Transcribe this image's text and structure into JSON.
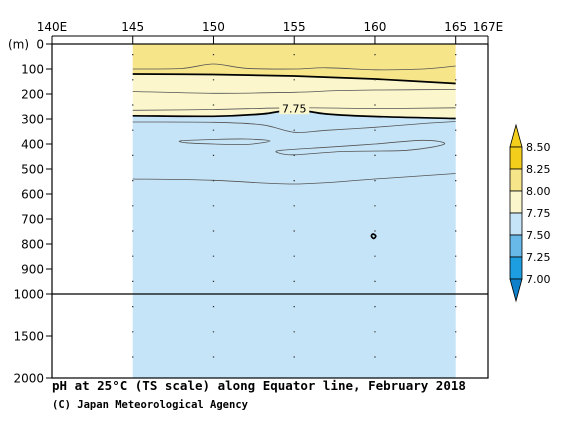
{
  "chart_data": {
    "type": "heatmap",
    "title": "pH at 25°C (TS scale) along Equator line, February 2018",
    "credit": "(C) Japan Meteorological Agency",
    "x_axis": {
      "ticks": [
        {
          "value": 140,
          "label": "140E"
        },
        {
          "value": 145,
          "label": "145"
        },
        {
          "value": 150,
          "label": "150"
        },
        {
          "value": 155,
          "label": "155"
        },
        {
          "value": 160,
          "label": "160"
        },
        {
          "value": 165,
          "label": "165"
        },
        {
          "value": 167,
          "label": "167E"
        }
      ],
      "range": [
        140,
        167
      ],
      "data_extent": [
        145,
        165
      ]
    },
    "y_axis": {
      "unit_label": "(m)",
      "break_depth": 1000,
      "ticks_upper": [
        {
          "value": 0,
          "label": "0"
        },
        {
          "value": 100,
          "label": "100"
        },
        {
          "value": 200,
          "label": "200"
        },
        {
          "value": 300,
          "label": "300"
        },
        {
          "value": 400,
          "label": "400"
        },
        {
          "value": 500,
          "label": "500"
        },
        {
          "value": 600,
          "label": "600"
        },
        {
          "value": 700,
          "label": "700"
        },
        {
          "value": 800,
          "label": "800"
        },
        {
          "value": 900,
          "label": "900"
        },
        {
          "value": 1000,
          "label": "1000"
        }
      ],
      "ticks_lower": [
        {
          "value": 1500,
          "label": "1500"
        },
        {
          "value": 2000,
          "label": "2000"
        }
      ],
      "range": [
        0,
        2000
      ]
    },
    "colorbar": {
      "levels": [
        {
          "label": "8.50",
          "value": 8.5
        },
        {
          "label": "8.25",
          "value": 8.25
        },
        {
          "label": "8.00",
          "value": 8.0
        },
        {
          "label": "7.75",
          "value": 7.75
        },
        {
          "label": "7.50",
          "value": 7.5
        },
        {
          "label": "7.25",
          "value": 7.25
        },
        {
          "label": "7.00",
          "value": 7.0
        }
      ],
      "bands": [
        {
          "range": [
            8.5,
            9.0
          ],
          "color": "#f3cf1c"
        },
        {
          "range": [
            8.25,
            8.5
          ],
          "color": "#f3cf1c"
        },
        {
          "range": [
            8.0,
            8.25
          ],
          "color": "#f7e58a"
        },
        {
          "range": [
            7.75,
            8.0
          ],
          "color": "#fbf6cc"
        },
        {
          "range": [
            7.5,
            7.75
          ],
          "color": "#c6e4f7"
        },
        {
          "range": [
            7.25,
            7.5
          ],
          "color": "#68b9e8"
        },
        {
          "range": [
            7.0,
            7.25
          ],
          "color": "#1d9ee0"
        },
        {
          "range": [
            6.5,
            7.0
          ],
          "color": "#0e7fc9"
        }
      ]
    },
    "fill_layers": [
      {
        "value_range": [
          8.0,
          8.25
        ],
        "color": "#f7e58a",
        "top_depth": 0,
        "bottom": [
          [
            145,
            120
          ],
          [
            150,
            122
          ],
          [
            155,
            128
          ],
          [
            160,
            140
          ],
          [
            165,
            158
          ]
        ]
      },
      {
        "value_range": [
          7.75,
          8.0
        ],
        "color": "#fbf6cc",
        "top": [
          [
            145,
            120
          ],
          [
            150,
            122
          ],
          [
            155,
            128
          ],
          [
            160,
            140
          ],
          [
            165,
            158
          ]
        ],
        "bottom": [
          [
            145,
            287
          ],
          [
            150,
            289
          ],
          [
            153,
            280
          ],
          [
            155,
            263
          ],
          [
            157,
            280
          ],
          [
            160,
            290
          ],
          [
            165,
            298
          ]
        ]
      },
      {
        "value_range": [
          7.5,
          7.75
        ],
        "color": "#c6e4f7",
        "top": [
          [
            145,
            287
          ],
          [
            150,
            289
          ],
          [
            153,
            280
          ],
          [
            155,
            263
          ],
          [
            157,
            280
          ],
          [
            160,
            290
          ],
          [
            165,
            298
          ]
        ],
        "bottom_depth": 2000
      }
    ],
    "contours": [
      {
        "value": 8.1,
        "style": "thin",
        "points": [
          [
            145,
            100
          ],
          [
            148,
            98
          ],
          [
            150,
            80
          ],
          [
            152,
            97
          ],
          [
            155,
            100
          ],
          [
            157,
            95
          ],
          [
            160,
            103
          ],
          [
            163,
            100
          ],
          [
            165,
            88
          ]
        ]
      },
      {
        "value": 8.0,
        "style": "thick",
        "points": [
          [
            145,
            120
          ],
          [
            150,
            122
          ],
          [
            155,
            128
          ],
          [
            160,
            140
          ],
          [
            165,
            158
          ]
        ]
      },
      {
        "value": 7.9,
        "style": "thin",
        "points": [
          [
            145,
            190
          ],
          [
            150,
            197
          ],
          [
            155,
            193
          ],
          [
            158,
            186
          ],
          [
            162,
            183
          ],
          [
            165,
            182
          ]
        ]
      },
      {
        "value": 7.8,
        "style": "thin",
        "points": [
          [
            145,
            265
          ],
          [
            150,
            262
          ],
          [
            155,
            255
          ],
          [
            160,
            258
          ],
          [
            165,
            255
          ]
        ]
      },
      {
        "value": 7.75,
        "style": "thick",
        "label": "7.75",
        "label_at": [
          155,
          265
        ],
        "points": [
          [
            145,
            287
          ],
          [
            150,
            289
          ],
          [
            153,
            280
          ],
          [
            155,
            263
          ],
          [
            157,
            280
          ],
          [
            160,
            290
          ],
          [
            165,
            298
          ]
        ]
      },
      {
        "value": 7.7,
        "style": "thin",
        "points": [
          [
            145,
            312
          ],
          [
            150,
            313
          ],
          [
            153,
            323
          ],
          [
            155,
            353
          ],
          [
            157,
            345
          ],
          [
            160,
            333
          ],
          [
            163,
            318
          ],
          [
            165,
            310
          ]
        ]
      },
      {
        "value": 7.6,
        "style": "thin",
        "closed": true,
        "points": [
          [
            148,
            387
          ],
          [
            150,
            382
          ],
          [
            152,
            380
          ],
          [
            153.5,
            388
          ],
          [
            152,
            402
          ],
          [
            150,
            400
          ],
          [
            148.3,
            395
          ]
        ]
      },
      {
        "value": 7.6,
        "style": "thin",
        "closed": true,
        "points": [
          [
            154.2,
            425
          ],
          [
            157,
            413
          ],
          [
            160,
            400
          ],
          [
            163,
            385
          ],
          [
            164.3,
            400
          ],
          [
            162,
            425
          ],
          [
            158,
            430
          ],
          [
            155,
            443
          ],
          [
            154,
            435
          ]
        ]
      },
      {
        "value": 7.6,
        "style": "thin",
        "points": [
          [
            145,
            540
          ],
          [
            150,
            545
          ],
          [
            155,
            560
          ],
          [
            160,
            540
          ],
          [
            165,
            518
          ]
        ]
      },
      {
        "value": 7.5,
        "style": "thick",
        "closed": true,
        "points": [
          [
            159.88,
            760
          ],
          [
            160.05,
            768
          ],
          [
            159.92,
            778
          ],
          [
            159.78,
            768
          ]
        ]
      }
    ],
    "gridlines": {
      "x": [
        145,
        150,
        155,
        160,
        165
      ],
      "style": "dotted"
    }
  }
}
